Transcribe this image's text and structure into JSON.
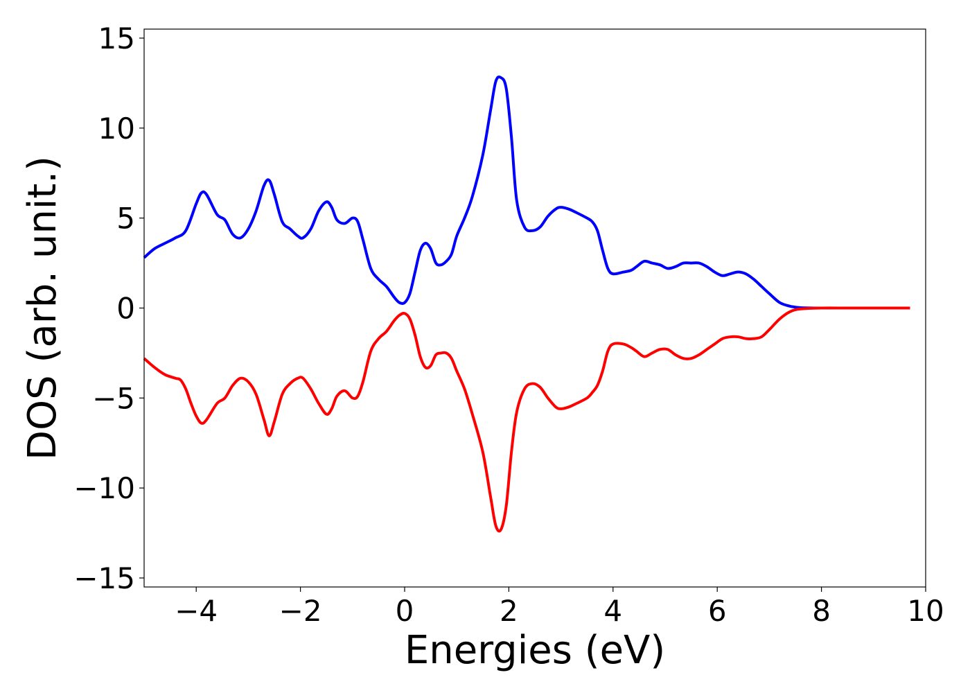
{
  "chart_data": {
    "type": "line",
    "xlabel": "Energies (eV)",
    "ylabel": "DOS (arb. unit.)",
    "xlim": [
      -5,
      10
    ],
    "ylim": [
      -15.5,
      15.5
    ],
    "xticks": [
      -4,
      -2,
      0,
      2,
      4,
      6,
      8,
      10
    ],
    "xtick_labels": [
      "−4",
      "−2",
      "0",
      "2",
      "4",
      "6",
      "8",
      "10"
    ],
    "yticks": [
      -15,
      -10,
      -5,
      0,
      5,
      10,
      15
    ],
    "ytick_labels": [
      "−15",
      "−10",
      "−5",
      "0",
      "5",
      "10",
      "15"
    ],
    "grid": false,
    "legend": "none",
    "series": [
      {
        "color": "#0000ff",
        "x": [
          -5.0,
          -4.8,
          -4.6,
          -4.4,
          -4.2,
          -4.0,
          -3.9,
          -3.8,
          -3.6,
          -3.45,
          -3.3,
          -3.15,
          -3.0,
          -2.85,
          -2.7,
          -2.6,
          -2.5,
          -2.35,
          -2.2,
          -2.05,
          -1.95,
          -1.8,
          -1.65,
          -1.5,
          -1.4,
          -1.3,
          -1.15,
          -1.0,
          -0.9,
          -0.8,
          -0.65,
          -0.5,
          -0.35,
          -0.2,
          -0.1,
          0.0,
          0.1,
          0.2,
          0.3,
          0.4,
          0.5,
          0.6,
          0.7,
          0.8,
          0.9,
          1.0,
          1.15,
          1.3,
          1.5,
          1.65,
          1.75,
          1.85,
          1.95,
          2.05,
          2.15,
          2.3,
          2.45,
          2.6,
          2.75,
          2.9,
          3.0,
          3.15,
          3.3,
          3.5,
          3.6,
          3.7,
          3.8,
          3.9,
          4.0,
          4.2,
          4.35,
          4.45,
          4.6,
          4.75,
          4.9,
          5.05,
          5.2,
          5.35,
          5.5,
          5.65,
          5.8,
          5.95,
          6.1,
          6.25,
          6.4,
          6.55,
          6.7,
          6.85,
          7.0,
          7.2,
          7.4,
          7.6,
          8.0,
          8.5,
          9.0,
          9.7
        ],
        "y": [
          2.8,
          3.3,
          3.6,
          3.9,
          4.3,
          5.8,
          6.4,
          6.3,
          5.2,
          4.9,
          4.1,
          3.9,
          4.4,
          5.4,
          6.8,
          7.1,
          6.3,
          4.8,
          4.4,
          4.0,
          3.9,
          4.4,
          5.4,
          5.9,
          5.6,
          4.9,
          4.7,
          5.0,
          4.8,
          3.8,
          2.2,
          1.6,
          1.2,
          0.6,
          0.3,
          0.3,
          0.8,
          2.0,
          3.2,
          3.6,
          3.3,
          2.5,
          2.4,
          2.6,
          3.0,
          4.0,
          5.0,
          6.2,
          8.5,
          11.0,
          12.6,
          12.8,
          12.2,
          9.5,
          6.0,
          4.5,
          4.3,
          4.5,
          5.1,
          5.5,
          5.6,
          5.5,
          5.3,
          5.0,
          4.8,
          4.3,
          3.2,
          2.2,
          1.9,
          2.0,
          2.1,
          2.3,
          2.6,
          2.5,
          2.4,
          2.2,
          2.3,
          2.5,
          2.5,
          2.5,
          2.3,
          2.0,
          1.8,
          1.9,
          2.0,
          1.9,
          1.6,
          1.2,
          0.8,
          0.3,
          0.1,
          0.02,
          0.0,
          0.0,
          0.0,
          0.0
        ]
      },
      {
        "color": "#ff0000",
        "x": [
          -5.0,
          -4.8,
          -4.6,
          -4.4,
          -4.3,
          -4.2,
          -4.1,
          -4.0,
          -3.9,
          -3.8,
          -3.6,
          -3.45,
          -3.3,
          -3.15,
          -3.0,
          -2.85,
          -2.7,
          -2.6,
          -2.5,
          -2.35,
          -2.2,
          -2.05,
          -1.95,
          -1.8,
          -1.65,
          -1.5,
          -1.4,
          -1.3,
          -1.15,
          -1.0,
          -0.9,
          -0.8,
          -0.65,
          -0.5,
          -0.35,
          -0.2,
          -0.1,
          0.0,
          0.1,
          0.2,
          0.3,
          0.4,
          0.5,
          0.6,
          0.7,
          0.8,
          0.9,
          1.0,
          1.15,
          1.3,
          1.5,
          1.65,
          1.75,
          1.85,
          1.95,
          2.05,
          2.15,
          2.3,
          2.45,
          2.6,
          2.75,
          2.9,
          3.0,
          3.15,
          3.3,
          3.5,
          3.6,
          3.7,
          3.8,
          3.9,
          4.0,
          4.2,
          4.35,
          4.45,
          4.6,
          4.75,
          4.9,
          5.05,
          5.2,
          5.35,
          5.5,
          5.65,
          5.8,
          5.95,
          6.1,
          6.25,
          6.4,
          6.55,
          6.7,
          6.85,
          7.0,
          7.2,
          7.4,
          7.6,
          8.0,
          8.5,
          9.0,
          9.7
        ],
        "y": [
          -2.8,
          -3.3,
          -3.7,
          -3.9,
          -4.0,
          -4.5,
          -5.3,
          -6.0,
          -6.4,
          -6.2,
          -5.3,
          -5.0,
          -4.3,
          -3.9,
          -4.1,
          -4.8,
          -6.2,
          -7.1,
          -6.3,
          -4.8,
          -4.2,
          -3.9,
          -3.9,
          -4.5,
          -5.3,
          -5.9,
          -5.6,
          -4.9,
          -4.6,
          -5.0,
          -4.9,
          -4.1,
          -2.4,
          -1.7,
          -1.3,
          -0.7,
          -0.4,
          -0.3,
          -0.6,
          -1.5,
          -2.7,
          -3.3,
          -3.2,
          -2.6,
          -2.5,
          -2.5,
          -2.8,
          -3.5,
          -4.5,
          -5.9,
          -8.0,
          -10.5,
          -12.1,
          -12.3,
          -11.0,
          -8.0,
          -5.8,
          -4.5,
          -4.2,
          -4.4,
          -5.0,
          -5.5,
          -5.6,
          -5.5,
          -5.3,
          -5.0,
          -4.7,
          -4.3,
          -3.5,
          -2.4,
          -2.0,
          -2.0,
          -2.2,
          -2.4,
          -2.7,
          -2.5,
          -2.3,
          -2.3,
          -2.6,
          -2.8,
          -2.8,
          -2.6,
          -2.3,
          -2.0,
          -1.7,
          -1.6,
          -1.6,
          -1.7,
          -1.7,
          -1.6,
          -1.2,
          -0.6,
          -0.2,
          -0.05,
          0.0,
          0.0,
          0.0,
          0.0
        ]
      }
    ]
  }
}
